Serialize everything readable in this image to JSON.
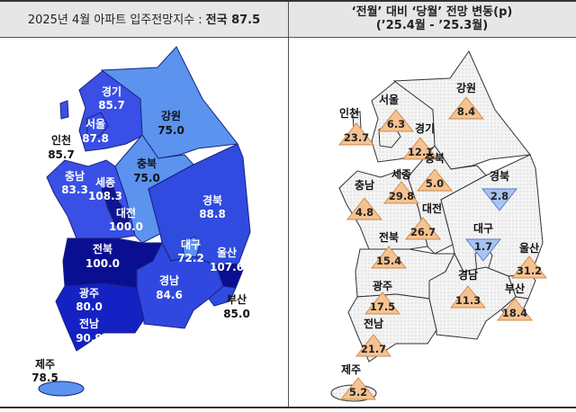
{
  "header": {
    "left_title": "2025년 4월 아파트 입주전망지수 :",
    "left_highlight": "전국 87.5",
    "right_title_line1": "‘전월’ 대비 ‘당월’ 전망 변동(p)",
    "right_title_line2": "(’25.4월  -  ’25.3월)"
  },
  "colors": {
    "light": "#5b93ef",
    "medium": "#3a4fe6",
    "strong": "#2a3fd8",
    "deep": "#1422c4",
    "darkest": "#0a0f92",
    "increase_fill": "#f5c392",
    "decrease_fill": "#a9c3f2",
    "map_fill": "#f3f3f3"
  },
  "index_map": {
    "gyeonggi": {
      "name": "경기",
      "value": "85.7"
    },
    "gangwon": {
      "name": "강원",
      "value": "75.0"
    },
    "seoul": {
      "name": "서울",
      "value": "87.8"
    },
    "incheon": {
      "name": "인천",
      "value": "85.7"
    },
    "chungbuk": {
      "name": "충북",
      "value": "75.0"
    },
    "chungnam": {
      "name": "충남",
      "value": "83.3"
    },
    "sejong": {
      "name": "세종",
      "value": "108.3"
    },
    "daejeon": {
      "name": "대전",
      "value": "100.0"
    },
    "gyeongbuk": {
      "name": "경북",
      "value": "88.8"
    },
    "daegu": {
      "name": "대구",
      "value": "72.2"
    },
    "ulsan": {
      "name": "울산",
      "value": "107.6"
    },
    "jeonbuk": {
      "name": "전북",
      "value": "100.0"
    },
    "gyeongnam": {
      "name": "경남",
      "value": "84.6"
    },
    "busan": {
      "name": "부산",
      "value": "85.0"
    },
    "gwangju": {
      "name": "광주",
      "value": "80.0"
    },
    "jeonnam": {
      "name": "전남",
      "value": "90.9"
    },
    "jeju": {
      "name": "제주",
      "value": "78.5"
    }
  },
  "change_map": {
    "gangwon": {
      "name": "강원",
      "value": "8.4",
      "direction": "up"
    },
    "seoul": {
      "name": "서울",
      "value": "6.3",
      "direction": "up"
    },
    "incheon": {
      "name": "인천",
      "value": "23.7",
      "direction": "up"
    },
    "gyeonggi": {
      "name": "경기",
      "value": "12.1",
      "direction": "up"
    },
    "chungbuk": {
      "name": "충북",
      "value": "5.0",
      "direction": "up"
    },
    "gyeongbuk": {
      "name": "경북",
      "value": "2.8",
      "direction": "down"
    },
    "sejong": {
      "name": "세종",
      "value": "29.8",
      "direction": "up"
    },
    "chungnam": {
      "name": "충남",
      "value": "4.8",
      "direction": "up"
    },
    "daejeon": {
      "name": "대전",
      "value": "26.7",
      "direction": "up"
    },
    "jeonbuk": {
      "name": "전북",
      "value": "15.4",
      "direction": "up"
    },
    "daegu": {
      "name": "대구",
      "value": "1.7",
      "direction": "down"
    },
    "ulsan": {
      "name": "울산",
      "value": "31.2",
      "direction": "up"
    },
    "gyeongnam": {
      "name": "경남",
      "value": "11.3",
      "direction": "up"
    },
    "busan": {
      "name": "부산",
      "value": "18.4",
      "direction": "up"
    },
    "gwangju": {
      "name": "광주",
      "value": "17.5",
      "direction": "up"
    },
    "jeonnam": {
      "name": "전남",
      "value": "21.7",
      "direction": "up"
    },
    "jeju": {
      "name": "제주",
      "value": "5.2",
      "direction": "up"
    }
  }
}
